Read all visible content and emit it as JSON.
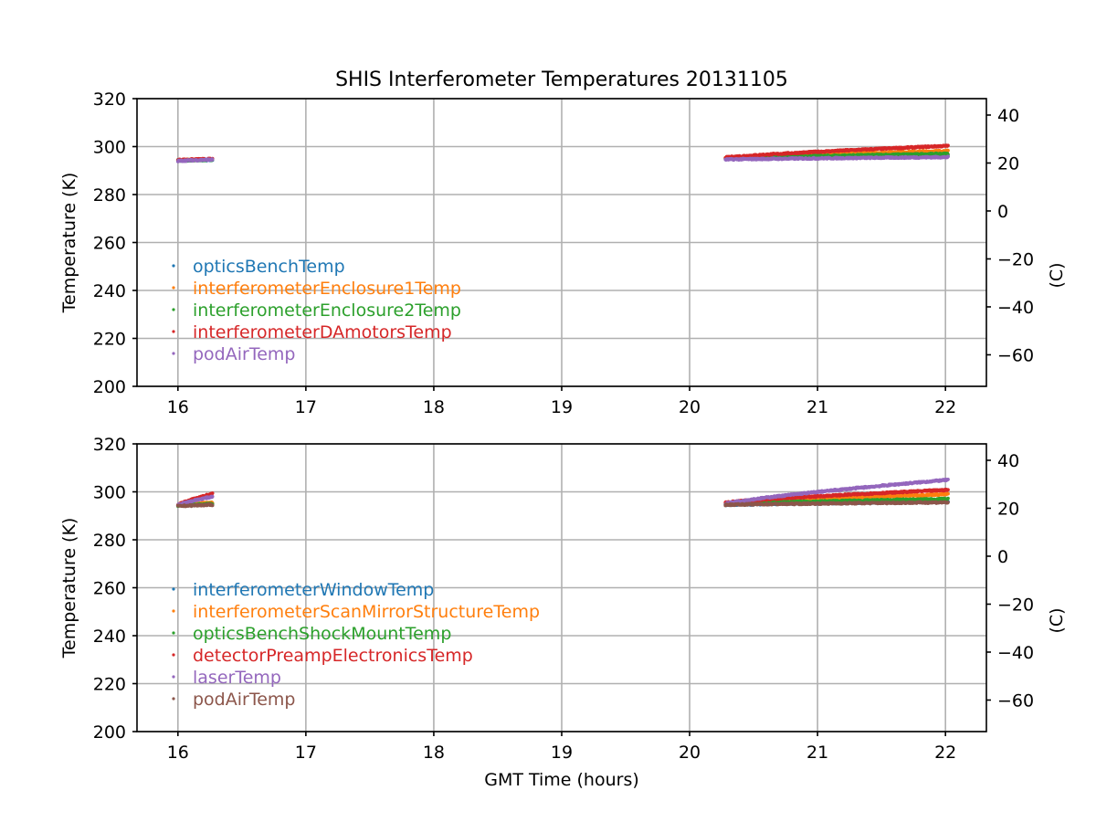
{
  "chart_data": {
    "title": "SHIS Interferometer Temperatures 20131105",
    "xlabel": "GMT Time (hours)",
    "panels": [
      {
        "type": "scatter",
        "ylabel": "Temperature (K)",
        "ylabel_right": "(C)",
        "xlim": [
          15.68,
          22.32
        ],
        "ylim": [
          200,
          320
        ],
        "xticks": [
          16,
          17,
          18,
          19,
          20,
          21,
          22
        ],
        "yticks": [
          200,
          220,
          240,
          260,
          280,
          300,
          320
        ],
        "yticks_right": [
          40,
          20,
          0,
          -20,
          -40,
          -60
        ],
        "grid": true,
        "legend_position": "lower-left",
        "series": [
          {
            "name": "opticsBenchTemp",
            "color": "#1f77b4",
            "segments": [
              {
                "t0": 16.0,
                "t1": 16.27,
                "v0": 294.2,
                "v1": 294.4
              },
              {
                "t0": 20.28,
                "t1": 22.02,
                "v0": 295.0,
                "v1": 295.8
              }
            ]
          },
          {
            "name": "interferometerEnclosure1Temp",
            "color": "#ff7f0e",
            "segments": [
              {
                "t0": 16.0,
                "t1": 16.27,
                "v0": 294.3,
                "v1": 294.6
              },
              {
                "t0": 20.28,
                "t1": 22.02,
                "v0": 295.3,
                "v1": 298.2
              }
            ]
          },
          {
            "name": "interferometerEnclosure2Temp",
            "color": "#2ca02c",
            "segments": [
              {
                "t0": 16.0,
                "t1": 16.27,
                "v0": 294.2,
                "v1": 294.5
              },
              {
                "t0": 20.28,
                "t1": 22.02,
                "v0": 295.1,
                "v1": 297.0
              }
            ]
          },
          {
            "name": "interferometerDAmotorsTemp",
            "color": "#d62728",
            "segments": [
              {
                "t0": 16.0,
                "t1": 16.27,
                "v0": 294.4,
                "v1": 294.8
              },
              {
                "t0": 20.28,
                "t1": 22.02,
                "v0": 295.4,
                "v1": 300.3
              }
            ]
          },
          {
            "name": "podAirTemp",
            "color": "#9467bd",
            "segments": [
              {
                "t0": 16.0,
                "t1": 16.27,
                "v0": 294.0,
                "v1": 294.6
              },
              {
                "t0": 20.28,
                "t1": 22.02,
                "v0": 294.6,
                "v1": 295.6
              }
            ]
          }
        ]
      },
      {
        "type": "scatter",
        "ylabel": "Temperature (K)",
        "ylabel_right": "(C)",
        "xlim": [
          15.68,
          22.32
        ],
        "ylim": [
          200,
          320
        ],
        "xticks": [
          16,
          17,
          18,
          19,
          20,
          21,
          22
        ],
        "yticks": [
          200,
          220,
          240,
          260,
          280,
          300,
          320
        ],
        "yticks_right": [
          40,
          20,
          0,
          -20,
          -40,
          -60
        ],
        "grid": true,
        "legend_position": "lower-left",
        "series": [
          {
            "name": "interferometerWindowTemp",
            "color": "#1f77b4",
            "segments": [
              {
                "t0": 16.0,
                "t1": 16.27,
                "v0": 294.2,
                "v1": 295.0
              },
              {
                "t0": 20.28,
                "t1": 22.02,
                "v0": 294.5,
                "v1": 296.0
              }
            ]
          },
          {
            "name": "interferometerScanMirrorStructureTemp",
            "color": "#ff7f0e",
            "segments": [
              {
                "t0": 16.0,
                "t1": 16.27,
                "v0": 294.3,
                "v1": 295.5
              },
              {
                "t0": 20.28,
                "t1": 22.02,
                "v0": 295.2,
                "v1": 299.0
              }
            ]
          },
          {
            "name": "opticsBenchShockMountTemp",
            "color": "#2ca02c",
            "segments": [
              {
                "t0": 16.0,
                "t1": 16.27,
                "v0": 294.2,
                "v1": 295.0
              },
              {
                "t0": 20.28,
                "t1": 22.02,
                "v0": 295.0,
                "v1": 297.0
              }
            ]
          },
          {
            "name": "detectorPreampElectronicsTemp",
            "color": "#d62728",
            "segments": [
              {
                "t0": 16.0,
                "t1": 16.27,
                "v0": 294.5,
                "v1": 299.2
              },
              {
                "t0": 20.28,
                "t1": 22.02,
                "v0": 295.5,
                "v1": 300.8
              }
            ]
          },
          {
            "name": "laserTemp",
            "color": "#9467bd",
            "segments": [
              {
                "t0": 16.0,
                "t1": 16.27,
                "v0": 294.4,
                "v1": 298.0
              },
              {
                "t0": 20.28,
                "t1": 22.02,
                "v0": 295.0,
                "v1": 305.0
              }
            ]
          },
          {
            "name": "podAirTemp",
            "color": "#8c564b",
            "segments": [
              {
                "t0": 16.0,
                "t1": 16.27,
                "v0": 294.0,
                "v1": 294.6
              },
              {
                "t0": 20.28,
                "t1": 22.02,
                "v0": 294.6,
                "v1": 295.6
              }
            ]
          }
        ]
      }
    ]
  }
}
